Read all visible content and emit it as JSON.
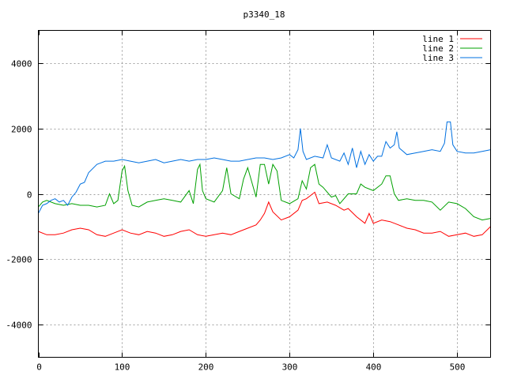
{
  "chart_data": {
    "type": "line",
    "title": "p3340_18",
    "xlabel": "",
    "ylabel": "",
    "xlim": [
      0,
      540
    ],
    "ylim": [
      -5000,
      5000
    ],
    "xticks": [
      0,
      100,
      200,
      300,
      400,
      500
    ],
    "yticks": [
      -4000,
      -2000,
      0,
      2000,
      4000
    ],
    "grid": true,
    "legend_position": "top-right",
    "series": [
      {
        "name": "line 1",
        "color": "#ff0000",
        "points": [
          [
            0,
            -1150
          ],
          [
            10,
            -1250
          ],
          [
            20,
            -1250
          ],
          [
            30,
            -1200
          ],
          [
            40,
            -1100
          ],
          [
            50,
            -1050
          ],
          [
            60,
            -1100
          ],
          [
            70,
            -1250
          ],
          [
            80,
            -1300
          ],
          [
            90,
            -1200
          ],
          [
            100,
            -1100
          ],
          [
            110,
            -1200
          ],
          [
            120,
            -1250
          ],
          [
            130,
            -1150
          ],
          [
            140,
            -1200
          ],
          [
            150,
            -1300
          ],
          [
            160,
            -1250
          ],
          [
            170,
            -1150
          ],
          [
            180,
            -1100
          ],
          [
            190,
            -1250
          ],
          [
            200,
            -1300
          ],
          [
            210,
            -1250
          ],
          [
            220,
            -1200
          ],
          [
            230,
            -1250
          ],
          [
            240,
            -1150
          ],
          [
            250,
            -1050
          ],
          [
            260,
            -950
          ],
          [
            265,
            -800
          ],
          [
            270,
            -600
          ],
          [
            275,
            -250
          ],
          [
            280,
            -550
          ],
          [
            290,
            -800
          ],
          [
            300,
            -700
          ],
          [
            310,
            -500
          ],
          [
            315,
            -200
          ],
          [
            320,
            -150
          ],
          [
            325,
            -50
          ],
          [
            330,
            50
          ],
          [
            335,
            -300
          ],
          [
            345,
            -250
          ],
          [
            355,
            -350
          ],
          [
            365,
            -500
          ],
          [
            370,
            -450
          ],
          [
            380,
            -700
          ],
          [
            390,
            -900
          ],
          [
            395,
            -600
          ],
          [
            400,
            -900
          ],
          [
            410,
            -800
          ],
          [
            420,
            -850
          ],
          [
            430,
            -950
          ],
          [
            440,
            -1050
          ],
          [
            450,
            -1100
          ],
          [
            460,
            -1200
          ],
          [
            470,
            -1200
          ],
          [
            480,
            -1150
          ],
          [
            490,
            -1300
          ],
          [
            500,
            -1250
          ],
          [
            510,
            -1200
          ],
          [
            520,
            -1300
          ],
          [
            530,
            -1250
          ],
          [
            540,
            -1000
          ]
        ]
      },
      {
        "name": "line 2",
        "color": "#00a000",
        "points": [
          [
            0,
            -400
          ],
          [
            5,
            -250
          ],
          [
            10,
            -200
          ],
          [
            20,
            -300
          ],
          [
            30,
            -350
          ],
          [
            40,
            -300
          ],
          [
            50,
            -350
          ],
          [
            60,
            -350
          ],
          [
            70,
            -400
          ],
          [
            80,
            -350
          ],
          [
            85,
            0
          ],
          [
            90,
            -300
          ],
          [
            95,
            -200
          ],
          [
            100,
            700
          ],
          [
            103,
            850
          ],
          [
            107,
            100
          ],
          [
            112,
            -350
          ],
          [
            120,
            -400
          ],
          [
            130,
            -250
          ],
          [
            140,
            -200
          ],
          [
            150,
            -150
          ],
          [
            160,
            -200
          ],
          [
            170,
            -250
          ],
          [
            180,
            100
          ],
          [
            185,
            -300
          ],
          [
            190,
            750
          ],
          [
            193,
            900
          ],
          [
            196,
            100
          ],
          [
            200,
            -150
          ],
          [
            210,
            -250
          ],
          [
            220,
            100
          ],
          [
            225,
            800
          ],
          [
            230,
            0
          ],
          [
            240,
            -150
          ],
          [
            245,
            450
          ],
          [
            250,
            800
          ],
          [
            260,
            -100
          ],
          [
            265,
            900
          ],
          [
            270,
            900
          ],
          [
            275,
            300
          ],
          [
            280,
            900
          ],
          [
            285,
            700
          ],
          [
            290,
            -200
          ],
          [
            300,
            -300
          ],
          [
            310,
            -150
          ],
          [
            315,
            400
          ],
          [
            320,
            150
          ],
          [
            325,
            800
          ],
          [
            330,
            900
          ],
          [
            335,
            300
          ],
          [
            340,
            200
          ],
          [
            350,
            -100
          ],
          [
            355,
            -50
          ],
          [
            360,
            -300
          ],
          [
            370,
            0
          ],
          [
            380,
            0
          ],
          [
            385,
            300
          ],
          [
            390,
            200
          ],
          [
            400,
            100
          ],
          [
            410,
            300
          ],
          [
            415,
            550
          ],
          [
            420,
            550
          ],
          [
            425,
            0
          ],
          [
            430,
            -200
          ],
          [
            440,
            -150
          ],
          [
            450,
            -200
          ],
          [
            460,
            -200
          ],
          [
            470,
            -250
          ],
          [
            480,
            -500
          ],
          [
            490,
            -250
          ],
          [
            500,
            -300
          ],
          [
            510,
            -450
          ],
          [
            520,
            -700
          ],
          [
            530,
            -800
          ],
          [
            540,
            -750
          ]
        ]
      },
      {
        "name": "line 3",
        "color": "#0070e0",
        "points": [
          [
            0,
            -600
          ],
          [
            5,
            -350
          ],
          [
            10,
            -300
          ],
          [
            15,
            -200
          ],
          [
            20,
            -150
          ],
          [
            25,
            -250
          ],
          [
            30,
            -200
          ],
          [
            35,
            -350
          ],
          [
            40,
            -100
          ],
          [
            45,
            50
          ],
          [
            50,
            300
          ],
          [
            55,
            350
          ],
          [
            60,
            650
          ],
          [
            70,
            900
          ],
          [
            80,
            1000
          ],
          [
            90,
            1000
          ],
          [
            100,
            1050
          ],
          [
            110,
            1000
          ],
          [
            120,
            950
          ],
          [
            130,
            1000
          ],
          [
            140,
            1050
          ],
          [
            150,
            950
          ],
          [
            160,
            1000
          ],
          [
            170,
            1050
          ],
          [
            180,
            1000
          ],
          [
            190,
            1050
          ],
          [
            200,
            1050
          ],
          [
            210,
            1100
          ],
          [
            220,
            1050
          ],
          [
            230,
            1000
          ],
          [
            240,
            1000
          ],
          [
            250,
            1050
          ],
          [
            260,
            1100
          ],
          [
            270,
            1100
          ],
          [
            280,
            1050
          ],
          [
            290,
            1100
          ],
          [
            300,
            1200
          ],
          [
            305,
            1100
          ],
          [
            310,
            1350
          ],
          [
            313,
            2000
          ],
          [
            316,
            1300
          ],
          [
            320,
            1050
          ],
          [
            330,
            1150
          ],
          [
            340,
            1100
          ],
          [
            345,
            1500
          ],
          [
            350,
            1100
          ],
          [
            360,
            1000
          ],
          [
            365,
            1250
          ],
          [
            370,
            900
          ],
          [
            375,
            1400
          ],
          [
            380,
            800
          ],
          [
            385,
            1300
          ],
          [
            390,
            900
          ],
          [
            395,
            1200
          ],
          [
            400,
            1000
          ],
          [
            405,
            1150
          ],
          [
            410,
            1150
          ],
          [
            415,
            1600
          ],
          [
            420,
            1400
          ],
          [
            425,
            1500
          ],
          [
            428,
            1900
          ],
          [
            431,
            1400
          ],
          [
            440,
            1200
          ],
          [
            450,
            1250
          ],
          [
            460,
            1300
          ],
          [
            470,
            1350
          ],
          [
            480,
            1300
          ],
          [
            485,
            1550
          ],
          [
            488,
            2200
          ],
          [
            492,
            2200
          ],
          [
            495,
            1500
          ],
          [
            500,
            1300
          ],
          [
            510,
            1250
          ],
          [
            520,
            1250
          ],
          [
            530,
            1300
          ],
          [
            540,
            1350
          ]
        ]
      }
    ]
  }
}
